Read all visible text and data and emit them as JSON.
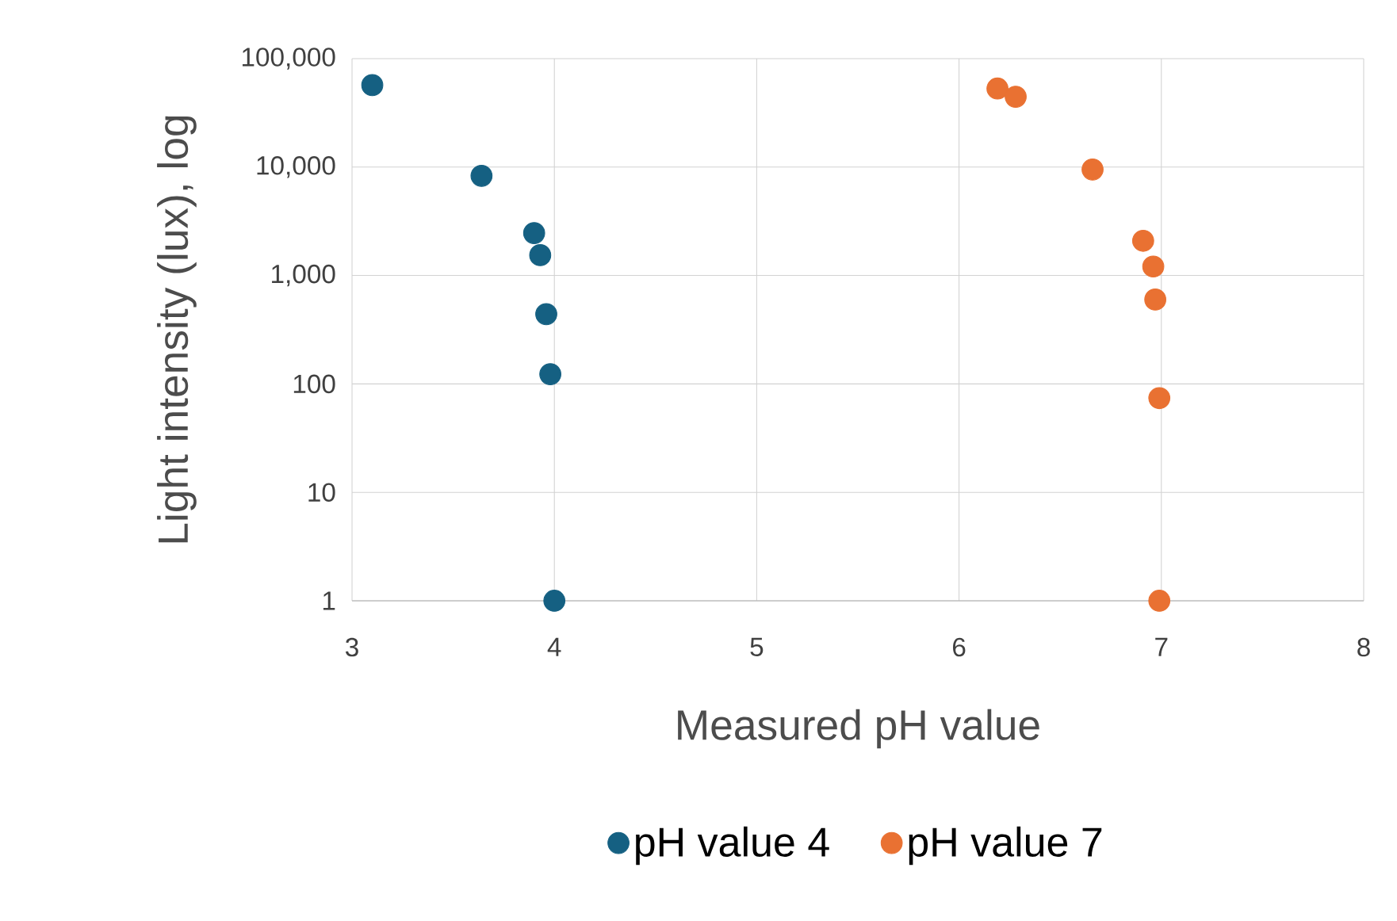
{
  "chart_data": {
    "type": "scatter",
    "xlabel": "Measured pH value",
    "ylabel": "Light intensity (lux), log",
    "xlim": [
      3,
      8
    ],
    "xticks": [
      3,
      4,
      5,
      6,
      7,
      8
    ],
    "ylim": [
      1,
      100000
    ],
    "yticks": [
      1,
      10,
      100,
      {
        "value": 1000,
        "label": "1,000"
      },
      {
        "value": 10000,
        "label": "10,000"
      },
      {
        "value": 100000,
        "label": "100,000"
      }
    ],
    "log": "y",
    "grid": true,
    "legend": "bottom",
    "series": [
      {
        "name": "pH value 4",
        "color": "#156082",
        "x": [
          3.1,
          3.64,
          3.9,
          3.93,
          3.96,
          3.98,
          4.0
        ],
        "values": [
          57000,
          8300,
          2460,
          1540,
          440,
          123,
          1
        ]
      },
      {
        "name": "pH value 7",
        "color": "#e97132",
        "x": [
          6.19,
          6.28,
          6.66,
          6.91,
          6.96,
          6.97,
          6.99,
          6.99
        ],
        "values": [
          53000,
          44500,
          9500,
          2090,
          1210,
          600,
          74,
          1
        ]
      }
    ]
  }
}
